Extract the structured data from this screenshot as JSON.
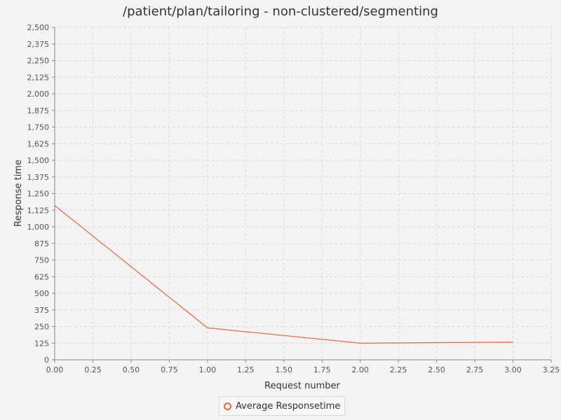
{
  "chart_data": {
    "type": "line",
    "title": "/patient/plan/tailoring - non-clustered/segmenting",
    "xlabel": "Request number",
    "ylabel": "Response time",
    "xlim": [
      0,
      3.25
    ],
    "ylim": [
      0,
      2500
    ],
    "x_ticks": [
      "0.00",
      "0.25",
      "0.50",
      "0.75",
      "1.00",
      "1.25",
      "1.50",
      "1.75",
      "2.00",
      "2.25",
      "2.50",
      "2.75",
      "3.00",
      "3.25"
    ],
    "y_ticks": [
      "0",
      "125",
      "250",
      "375",
      "500",
      "625",
      "750",
      "875",
      "1,000",
      "1,125",
      "1,250",
      "1,375",
      "1,500",
      "1,625",
      "1,750",
      "1,875",
      "2,000",
      "2,125",
      "2,250",
      "2,375",
      "2,500"
    ],
    "grid": true,
    "legend_position": "bottom",
    "series": [
      {
        "name": "Average Responsetime",
        "color": "#e8673c",
        "x": [
          0,
          1,
          2,
          3
        ],
        "y": [
          1160,
          240,
          125,
          133
        ]
      }
    ]
  }
}
